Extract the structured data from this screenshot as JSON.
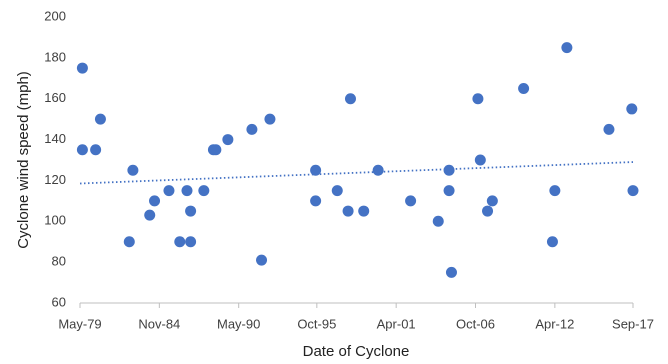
{
  "chart_data": {
    "type": "scatter",
    "x_label": "Date of Cyclone",
    "y_label": "Cyclone wind speed (mph)",
    "x": [
      "1979-07",
      "1979-07",
      "1980-06",
      "1980-10",
      "1982-10",
      "1983-01",
      "1984-03",
      "1984-07",
      "1985-07",
      "1986-04",
      "1986-10",
      "1987-01",
      "1987-01",
      "1987-12",
      "1988-08",
      "1988-10",
      "1989-08",
      "1991-04",
      "1991-12",
      "1992-07",
      "1995-09",
      "1995-09",
      "1997-03",
      "1997-12",
      "1998-02",
      "1999-01",
      "2000-01",
      "2002-04",
      "2004-03",
      "2004-12",
      "2004-12",
      "2005-02",
      "2006-12",
      "2007-02",
      "2007-08",
      "2007-12",
      "2010-02",
      "2012-02",
      "2012-04",
      "2013-02",
      "2016-01",
      "2017-08",
      "2017-09"
    ],
    "values": [
      175,
      135,
      135,
      150,
      90,
      125,
      103,
      110,
      115,
      90,
      115,
      90,
      105,
      115,
      135,
      135,
      140,
      145,
      81,
      150,
      125,
      110,
      115,
      105,
      160,
      105,
      125,
      110,
      100,
      125,
      115,
      75,
      160,
      130,
      105,
      110,
      165,
      90,
      115,
      185,
      145,
      155,
      115
    ],
    "color": "#4472c4",
    "trendline": [
      118.5,
      129
    ],
    "xlim": [
      "1979-05",
      "2017-09"
    ],
    "xticks": [
      {
        "value": "1979-05",
        "label": "May-79"
      },
      {
        "value": "1984-11",
        "label": "Nov-84"
      },
      {
        "value": "1990-05",
        "label": "May-90"
      },
      {
        "value": "1995-10",
        "label": "Oct-95"
      },
      {
        "value": "2001-04",
        "label": "Apr-01"
      },
      {
        "value": "2006-10",
        "label": "Oct-06"
      },
      {
        "value": "2012-04",
        "label": "Apr-12"
      },
      {
        "value": "2017-09",
        "label": "Sep-17"
      }
    ],
    "ylim": [
      60,
      200
    ],
    "yticks": [
      60,
      80,
      100,
      120,
      140,
      160,
      180,
      200
    ],
    "grid": false
  }
}
